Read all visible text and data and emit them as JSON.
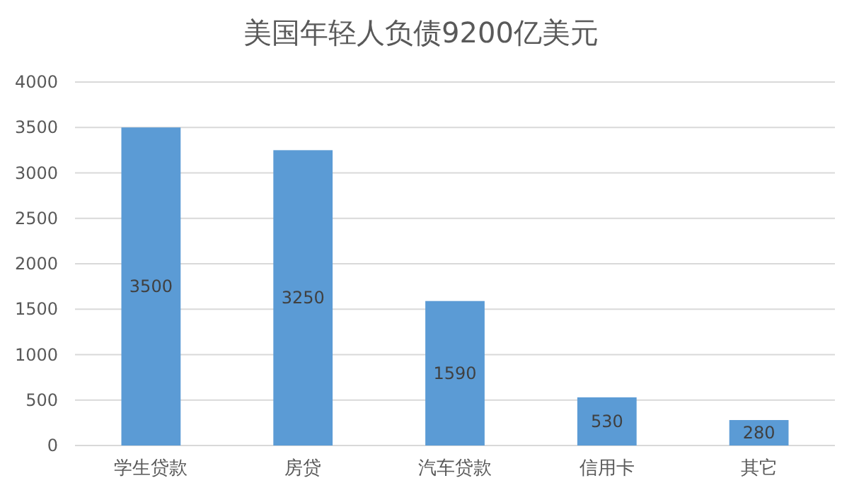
{
  "chart_data": {
    "type": "bar",
    "title": "美国年轻人负债9200亿美元",
    "categories": [
      "学生贷款",
      "房贷",
      "汽车贷款",
      "信用卡",
      "其它"
    ],
    "values": [
      3500,
      3250,
      1590,
      530,
      280
    ],
    "color": "#5b9bd5",
    "ylim": [
      0,
      4000
    ],
    "yticks": [
      0,
      500,
      1000,
      1500,
      2000,
      2500,
      3000,
      3500,
      4000
    ],
    "grid": "y",
    "data_labels": true
  }
}
